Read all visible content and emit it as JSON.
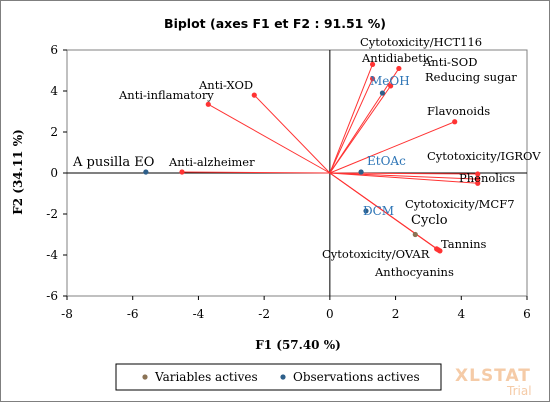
{
  "chart_data": {
    "type": "scatter",
    "title": "Biplot (axes F1 et F2 : 91.51 %)",
    "xlabel": "F1 (57.40 %)",
    "ylabel": "F2 (34.11 %)",
    "xlim": [
      -8,
      6
    ],
    "ylim": [
      -6,
      6
    ],
    "x_ticks": [
      "-8",
      "-6",
      "-4",
      "-2",
      "0",
      "2",
      "4",
      "6"
    ],
    "y_ticks": [
      "-6",
      "-4",
      "-2",
      "0",
      "2",
      "4",
      "6"
    ],
    "grid": false,
    "legend_position": "bottom",
    "colors": {
      "vectors": "#ff3333",
      "variables": "#8b7355",
      "observations": "#2e5f8a",
      "obs_text": "#2e75b6"
    },
    "vectors": [
      {
        "name": "Cytotoxicity/HCT116",
        "x": 1.3,
        "y": 5.3
      },
      {
        "name": "Antidiabetic",
        "x": 1.3,
        "y": 4.6
      },
      {
        "name": "Anti-SOD",
        "x": 2.1,
        "y": 5.1
      },
      {
        "name": "Reducing sugar",
        "x": 1.85,
        "y": 4.25
      },
      {
        "name": "Anti-XOD",
        "x": -2.3,
        "y": 3.8
      },
      {
        "name": "Anti-inflamatory",
        "x": -3.7,
        "y": 3.35
      },
      {
        "name": "Flavonoids",
        "x": 3.8,
        "y": 2.5
      },
      {
        "name": "Anti-alzheimer",
        "x": -4.5,
        "y": 0.05
      },
      {
        "name": "Cytotoxicity/IGROV",
        "x": 4.5,
        "y": -0.05
      },
      {
        "name": "Phenolics",
        "x": 4.5,
        "y": -0.5
      },
      {
        "name": "Cytotoxicity/MCF7",
        "x": 4.5,
        "y": -0.3
      },
      {
        "name": "Tannins",
        "x": 3.35,
        "y": -3.8
      },
      {
        "name": "Cytotoxicity/OVAR",
        "x": 3.3,
        "y": -3.75
      },
      {
        "name": "Anthocyanins",
        "x": 3.25,
        "y": -3.7
      }
    ],
    "observations": [
      {
        "name": "A pusilla EO",
        "x": -5.6,
        "y": 0.05
      },
      {
        "name": "MeOH",
        "x": 1.6,
        "y": 3.9
      },
      {
        "name": "EtOAc",
        "x": 0.95,
        "y": 0.05
      },
      {
        "name": "DCM",
        "x": 1.1,
        "y": -1.85
      },
      {
        "name": "Cyclo",
        "x": 2.6,
        "y": -3.0
      }
    ],
    "legend": {
      "variables": "Variables actives",
      "observations": "Observations actives"
    }
  },
  "watermark": {
    "brand": "XLSTAT",
    "tag": "Trial"
  }
}
